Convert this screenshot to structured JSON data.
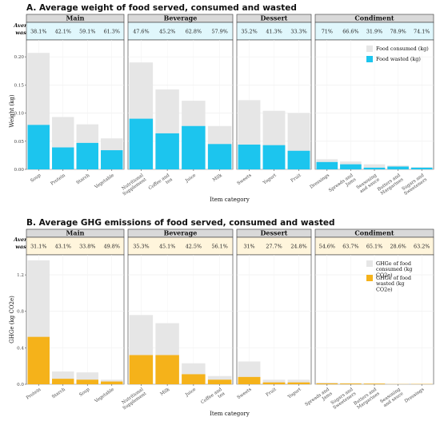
{
  "chart_data": [
    {
      "type": "bar",
      "title": "A. Average weight of food served, consumed and wasted",
      "xlabel": "Item category",
      "ylabel": "Weight (kg)",
      "ylim": [
        0,
        0.23
      ],
      "yticks": [
        "0.00",
        "0.05",
        "0.10",
        "0.15",
        "0.20"
      ],
      "row_label": "Average wasted",
      "strip_color": "#e0f7fc",
      "legend_position": "right",
      "legend": [
        {
          "name": "Food consumed (kg)",
          "color": "#e6e6e6"
        },
        {
          "name": "Food wasted (kg)",
          "color": "#1cc5ee"
        }
      ],
      "facets": [
        {
          "name": "Main",
          "categories": [
            "Soup",
            "Protein",
            "Starch",
            "Vegetable"
          ],
          "served": [
            0.207,
            0.093,
            0.08,
            0.055
          ],
          "wasted": [
            0.079,
            0.039,
            0.047,
            0.034
          ],
          "pct": [
            "38.1%",
            "42.1%",
            "59.1%",
            "61.3%"
          ]
        },
        {
          "name": "Beverage",
          "categories": [
            "Nutritional Supplement",
            "Coffee and tea",
            "Juice",
            "Milk"
          ],
          "served": [
            0.19,
            0.142,
            0.122,
            0.077
          ],
          "wasted": [
            0.09,
            0.064,
            0.077,
            0.045
          ],
          "pct": [
            "47.6%",
            "45.2%",
            "62.8%",
            "57.9%"
          ]
        },
        {
          "name": "Dessert",
          "categories": [
            "Sweets",
            "Yogurt",
            "Fruit"
          ],
          "served": [
            0.123,
            0.104,
            0.1
          ],
          "wasted": [
            0.044,
            0.043,
            0.033
          ],
          "pct": [
            "35.2%",
            "41.3%",
            "33.3%"
          ]
        },
        {
          "name": "Condiment",
          "categories": [
            "Dressings",
            "Spreads and Jams",
            "Seasoning and sauce",
            "Butters and Margarines",
            "Sugars and Sweeteners"
          ],
          "served": [
            0.018,
            0.014,
            0.009,
            0.007,
            0.004
          ],
          "wasted": [
            0.013,
            0.009,
            0.003,
            0.005,
            0.003
          ],
          "pct": [
            "71%",
            "66.6%",
            "31.9%",
            "78.9%",
            "74.1%"
          ]
        }
      ]
    },
    {
      "type": "bar",
      "title": "B. Average GHG emissions of food served, consumed and wasted",
      "xlabel": "Item category",
      "ylabel": "GHGe (kg CO2e)",
      "ylim": [
        0,
        1.42
      ],
      "yticks": [
        "0.0",
        "0.4",
        "0.8",
        "1.2"
      ],
      "row_label": "Average wasted",
      "strip_color": "#fff5dc",
      "legend_position": "right",
      "legend": [
        {
          "name": "GHGe of food consumed (kg CO2e)",
          "color": "#e6e6e6"
        },
        {
          "name": "GHGe of food wasted (kg CO2e)",
          "color": "#f5b21a"
        }
      ],
      "facets": [
        {
          "name": "Main",
          "categories": [
            "Protein",
            "Starch",
            "Soup",
            "Vegetable"
          ],
          "served": [
            1.36,
            0.14,
            0.13,
            0.05
          ],
          "wasted": [
            0.52,
            0.06,
            0.05,
            0.03
          ],
          "pct": [
            "31.1%",
            "43.1%",
            "33.8%",
            "49.8%"
          ]
        },
        {
          "name": "Beverage",
          "categories": [
            "Nutritional Supplement",
            "Milk",
            "Juice",
            "Coffee and tea"
          ],
          "served": [
            0.76,
            0.67,
            0.23,
            0.09
          ],
          "wasted": [
            0.32,
            0.32,
            0.11,
            0.05
          ],
          "pct": [
            "35.3%",
            "45.1%",
            "42.5%",
            "56.1%"
          ]
        },
        {
          "name": "Dessert",
          "categories": [
            "Sweets",
            "Fruit",
            "Yogurt"
          ],
          "served": [
            0.25,
            0.05,
            0.05
          ],
          "wasted": [
            0.08,
            0.02,
            0.02
          ],
          "pct": [
            "31%",
            "27.7%",
            "24.8%"
          ]
        },
        {
          "name": "Condiment",
          "categories": [
            "Spreads and Jams",
            "Sugars and Sweeteners",
            "Butters and Margarines",
            "Seasoning and sauce",
            "Dressings"
          ],
          "served": [
            0.018,
            0.012,
            0.009,
            0.006,
            0.005
          ],
          "wasted": [
            0.01,
            0.008,
            0.007,
            0.002,
            0.003
          ],
          "pct": [
            "54.6%",
            "63.7%",
            "65.1%",
            "28.6%",
            "63.2%"
          ]
        }
      ]
    }
  ]
}
